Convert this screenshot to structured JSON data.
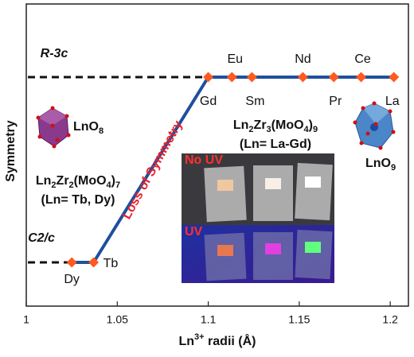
{
  "chart_data": {
    "type": "line",
    "x": [
      1.025,
      1.037,
      1.1,
      1.113,
      1.124,
      1.152,
      1.169,
      1.184,
      1.202
    ],
    "values": [
      "C2/c",
      "C2/c",
      "R-3c",
      "R-3c",
      "R-3c",
      "R-3c",
      "R-3c",
      "R-3c",
      "R-3c"
    ],
    "point_labels": [
      "Dy",
      "Tb",
      "Gd",
      "Eu",
      "Sm",
      "Nd",
      "Pr",
      "Ce",
      "La"
    ],
    "y_categories": [
      "C2/c",
      "R-3c"
    ],
    "y_label": "Symmetry",
    "x_label_parts": [
      "Ln",
      "3+",
      " radii (Å)"
    ],
    "xlim": [
      1.0,
      1.21
    ],
    "xticks": [
      1,
      1.05,
      1.1,
      1.15,
      1.2
    ],
    "line_color": "#1f4f9e",
    "marker_color": "#ff5a1f",
    "annotations": {
      "low_phase_formula": [
        "Ln",
        "2",
        "Zr",
        "2",
        "(MoO",
        "4",
        ")",
        "7"
      ],
      "low_phase_members": "(Ln= Tb, Dy)",
      "high_phase_formula": [
        "Ln",
        "2",
        "Zr",
        "3",
        "(MoO",
        "4",
        ")",
        "9"
      ],
      "high_phase_members": "(Ln= La-Gd)",
      "low_polyhedron": [
        "LnO",
        "8"
      ],
      "high_polyhedron": [
        "LnO",
        "9"
      ],
      "transition": "Loss of Symmetry",
      "photo_top": "No UV",
      "photo_bottom": "UV"
    }
  }
}
